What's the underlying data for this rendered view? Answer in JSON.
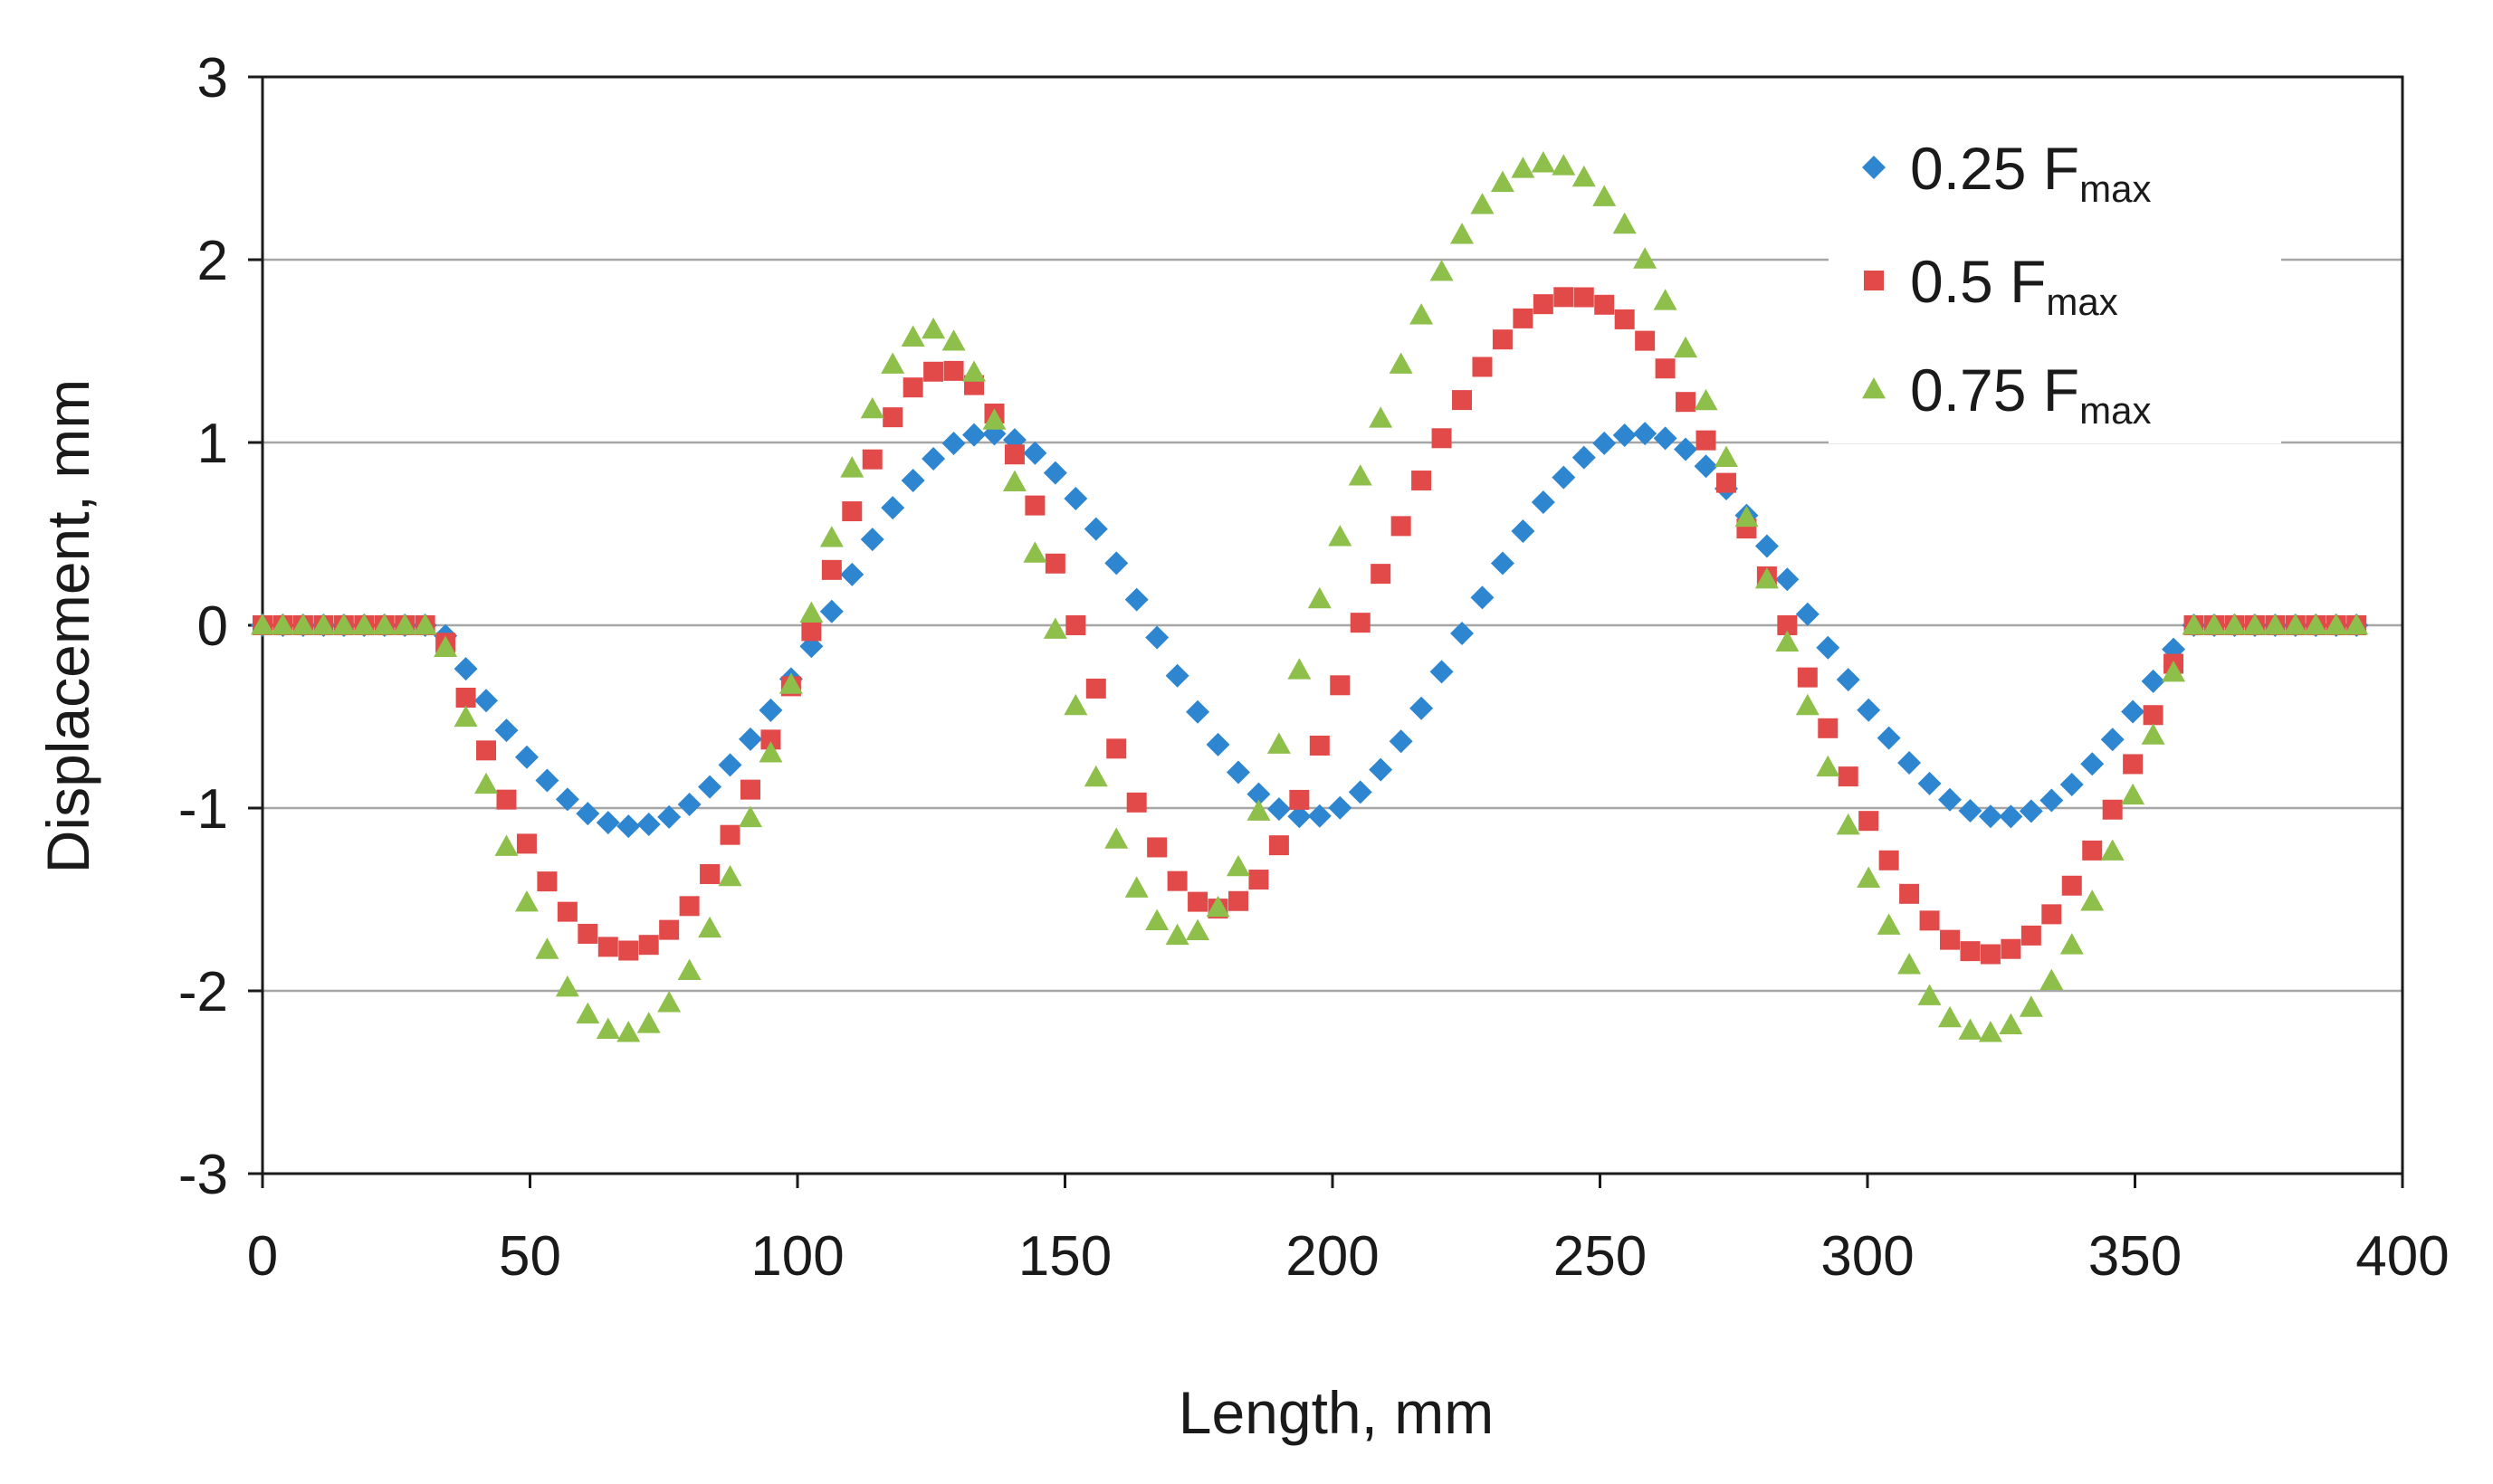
{
  "chart_data": {
    "type": "scatter",
    "title": "",
    "xlabel": "Length, mm",
    "ylabel": "Displacement, mm",
    "xlim": [
      0,
      400
    ],
    "ylim": [
      -3,
      3
    ],
    "xticks": [
      0,
      50,
      100,
      150,
      200,
      250,
      300,
      350,
      400
    ],
    "yticks": [
      -3,
      -2,
      -1,
      0,
      1,
      2,
      3
    ],
    "grid": "horizontal",
    "legend_position": "top-right",
    "series": [
      {
        "name": "0.25 Fmax",
        "label_main": "0.25 F",
        "label_sub": "max",
        "marker": "diamond",
        "color": "#2E86D1",
        "x_range": [
          0,
          393
        ],
        "x_step": 3.8,
        "flat_until": 33,
        "flat_after": 360,
        "waves": [
          {
            "from": 33,
            "to": 105,
            "amp": -1.1
          },
          {
            "from": 105,
            "to": 166,
            "amp": 1.05
          },
          {
            "from": 166,
            "to": 225,
            "amp": -1.05
          },
          {
            "from": 225,
            "to": 290,
            "amp": 1.05
          },
          {
            "from": 290,
            "to": 360,
            "amp": -1.05
          }
        ]
      },
      {
        "name": "0.5 Fmax",
        "label_main": "0.5 F",
        "label_sub": "max",
        "marker": "square",
        "color": "#E24A4A",
        "x_range": [
          0,
          393
        ],
        "x_step": 3.8,
        "flat_until": 33,
        "flat_after": 360,
        "waves": [
          {
            "from": 33,
            "to": 103,
            "amp": -1.78
          },
          {
            "from": 103,
            "to": 152,
            "amp": 1.4
          },
          {
            "from": 152,
            "to": 205,
            "amp": -1.55
          },
          {
            "from": 205,
            "to": 285,
            "amp": 1.8
          },
          {
            "from": 285,
            "to": 360,
            "amp": -1.8
          }
        ]
      },
      {
        "name": "0.75 Fmax",
        "label_main": "0.75 F",
        "label_sub": "max",
        "marker": "triangle",
        "color": "#8DBF4A",
        "x_range": [
          0,
          393
        ],
        "x_step": 3.8,
        "flat_until": 33,
        "flat_after": 360,
        "waves": [
          {
            "from": 33,
            "to": 102,
            "amp": -2.23
          },
          {
            "from": 102,
            "to": 148,
            "amp": 1.62
          },
          {
            "from": 148,
            "to": 196,
            "amp": -1.7
          },
          {
            "from": 196,
            "to": 284,
            "amp": 2.53
          },
          {
            "from": 284,
            "to": 360,
            "amp": -2.23
          }
        ]
      }
    ]
  }
}
